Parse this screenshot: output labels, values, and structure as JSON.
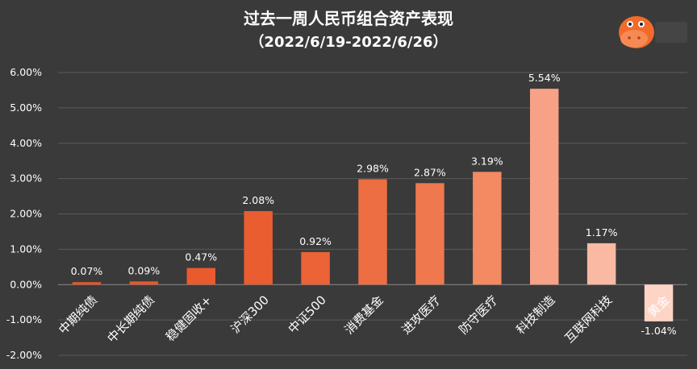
{
  "chart_data": {
    "type": "bar",
    "title": "过去一周人民币组合资产表现",
    "subtitle": "（2022/6/19-2022/6/26）",
    "categories": [
      "中期纯债",
      "中长期纯债",
      "稳健固收+",
      "沪深300",
      "中证500",
      "消费基金",
      "进攻医疗",
      "防守医疗",
      "科技制造",
      "互联网科技",
      "黄金"
    ],
    "values": [
      0.07,
      0.09,
      0.47,
      2.08,
      0.92,
      2.98,
      2.87,
      3.19,
      5.54,
      1.17,
      -1.04
    ],
    "value_labels": [
      "0.07%",
      "0.09%",
      "0.47%",
      "2.08%",
      "0.92%",
      "2.98%",
      "2.87%",
      "3.19%",
      "5.54%",
      "1.17%",
      "-1.04%"
    ],
    "colors": [
      "#e8552a",
      "#e8572d",
      "#e95a2f",
      "#e95d30",
      "#eb6336",
      "#ee6e43",
      "#f0784f",
      "#f38a62",
      "#f7a286",
      "#fab9a2",
      "#fdd5c6"
    ],
    "ylim": [
      -2,
      6
    ],
    "yticks": [
      6,
      5,
      4,
      3,
      2,
      1,
      0,
      -1,
      -2
    ],
    "ytick_labels": [
      "6.00%",
      "5.00%",
      "4.00%",
      "3.00%",
      "2.00%",
      "1.00%",
      "0.00%",
      "-1.00%",
      "-2.00%"
    ],
    "grid": true,
    "legend": "none"
  },
  "logo": {
    "name": "hippo-logo-icon"
  }
}
